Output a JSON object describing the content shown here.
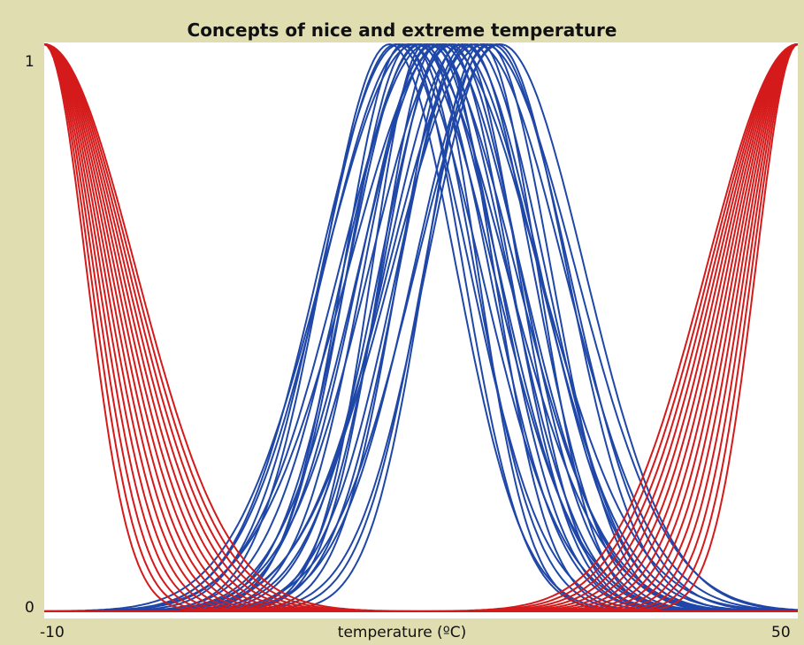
{
  "chart_data": {
    "type": "line",
    "title": "Concepts of nice and extreme temperature",
    "xlabel": "temperature (ºC)",
    "ylabel": "",
    "xlim": [
      -10,
      50
    ],
    "ylim": [
      0,
      1
    ],
    "x_tick_labels": [
      "-10",
      "50"
    ],
    "y_tick_labels": [
      "0",
      "1"
    ],
    "grid": false,
    "legend": "none",
    "colors": {
      "nice": "#1f47a8",
      "extreme": "#d41a1a"
    },
    "series_groups": [
      {
        "group": "nice",
        "color": "#1f47a8",
        "shape": "gaussian",
        "centers": [
          17.5,
          18.0,
          18.3,
          18.6,
          19.0,
          19.2,
          19.5,
          19.8,
          20.0,
          20.3,
          20.5,
          20.8,
          21.0,
          21.3,
          21.5,
          21.8,
          22.0,
          22.3,
          22.6,
          23.0,
          23.3,
          23.6,
          24.0,
          24.4,
          24.8,
          25.0,
          25.3,
          25.6,
          26.0,
          26.3
        ],
        "widths": [
          9.5,
          10.5,
          11.5,
          8.5,
          12.0,
          9.0,
          13.0,
          10.0,
          11.0,
          7.5,
          12.5,
          9.5,
          10.5,
          8.0,
          11.5,
          13.5,
          9.0,
          10.0,
          12.0,
          8.5,
          11.0,
          9.5,
          10.5,
          12.5,
          8.0,
          13.0,
          9.0,
          11.0,
          10.0,
          12.0
        ]
      },
      {
        "group": "extreme-cold",
        "color": "#d41a1a",
        "shape": "gaussian",
        "centers": [
          -10,
          -10,
          -10,
          -10,
          -10,
          -10,
          -10,
          -10,
          -10,
          -10,
          -10,
          -10,
          -10,
          -10,
          -10
        ],
        "widths": [
          6.0,
          6.5,
          7.0,
          7.5,
          8.0,
          8.5,
          9.0,
          9.5,
          10.0,
          10.5,
          11.0,
          11.5,
          12.0,
          12.5,
          13.0
        ]
      },
      {
        "group": "extreme-hot",
        "color": "#d41a1a",
        "shape": "gaussian",
        "centers": [
          50,
          50,
          50,
          50,
          50,
          50,
          50,
          50,
          50,
          50,
          50,
          50,
          50,
          50,
          50
        ],
        "widths": [
          6.0,
          6.5,
          7.0,
          7.5,
          8.0,
          8.5,
          9.0,
          9.5,
          10.0,
          10.5,
          11.0,
          11.5,
          12.0,
          12.5,
          13.0
        ]
      }
    ]
  }
}
